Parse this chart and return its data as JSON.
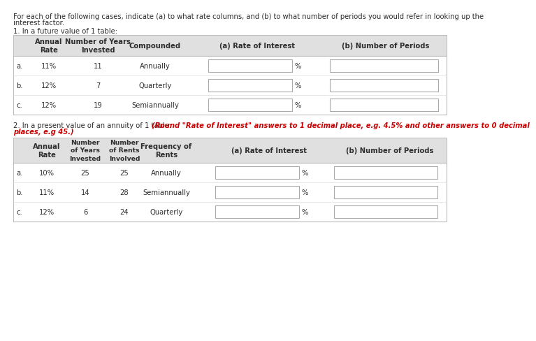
{
  "intro_line1": "For each of the following cases, indicate (a) to what rate columns, and (b) to what number of periods you would refer in looking up the",
  "intro_line2": "interest factor.",
  "section1_title": "1. In a future value of 1 table:",
  "section2_title": "2. In a present value of an annuity of 1 table: ",
  "section2_red": "(Round \"Rate of Interest\" answers to 1 decimal place, e.g. 4.5% and other answers to 0 decimal",
  "section2_red2": "places, e.g 45.)",
  "t1_headers": [
    "Annual\nRate",
    "Number of Years\nInvested",
    "Compounded",
    "(a) Rate of Interest",
    "(b) Number of Periods"
  ],
  "t1_rows": [
    [
      "a.",
      "11%",
      "11",
      "Annually"
    ],
    [
      "b.",
      "12%",
      "7",
      "Quarterly"
    ],
    [
      "c.",
      "12%",
      "19",
      "Semiannually"
    ]
  ],
  "t2_headers": [
    "Annual\nRate",
    "Number\nof Years\nInvested",
    "Number\nof Rents\nInvolved",
    "Frequency of\nRents",
    "(a) Rate of Interest",
    "(b) Number of Periods"
  ],
  "t2_rows": [
    [
      "a.",
      "10%",
      "25",
      "25",
      "Annually"
    ],
    [
      "b.",
      "11%",
      "14",
      "28",
      "Semiannually"
    ],
    [
      "c.",
      "12%",
      "6",
      "24",
      "Quarterly"
    ]
  ],
  "bg_color": "#f5f5f5",
  "header_bg": "#e0e0e0",
  "white": "#ffffff",
  "text_color": "#2d2d2d",
  "red_color": "#cc0000",
  "border_color": "#bbbbbb",
  "row_sep_color": "#dddddd",
  "fs": 7.2,
  "hfs": 7.2
}
